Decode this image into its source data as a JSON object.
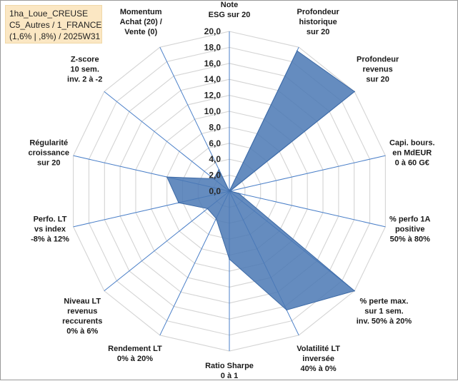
{
  "title_box": {
    "line1": "1ha_Loue_CREUSE",
    "line2": "C5_Autres / 1_FRANCE",
    "line3": "(1,6% | ,8%) / 2025W31"
  },
  "chart_data": {
    "type": "radar",
    "rmin": 0,
    "rmax": 20,
    "tick_step": 2,
    "tick_labels": [
      "0,0",
      "2,0",
      "4,0",
      "6,0",
      "8,0",
      "10,0",
      "12,0",
      "14,0",
      "16,0",
      "18,0",
      "20,0"
    ],
    "axes": [
      {
        "label": [
          "Note",
          "ESG sur 20"
        ]
      },
      {
        "label": [
          "Profondeur",
          "historique",
          "sur 20"
        ]
      },
      {
        "label": [
          "Profondeur",
          "revenus",
          "sur 20"
        ]
      },
      {
        "label": [
          "Capi. bours.",
          "en MdEUR",
          "0 à 60 G€"
        ]
      },
      {
        "label": [
          "% perfo 1A",
          "positive",
          "50% à 80%"
        ]
      },
      {
        "label": [
          "% perte max.",
          "sur 1 sem.",
          "inv. 50% à 20%"
        ]
      },
      {
        "label": [
          "Volatilité LT",
          "inversée",
          "40% à 0%"
        ]
      },
      {
        "label": [
          "Ratio Sharpe",
          "0 à 1"
        ]
      },
      {
        "label": [
          "Rendement LT",
          "0% à 20%"
        ]
      },
      {
        "label": [
          "Niveau LT",
          "revenus",
          "reccurents",
          "0% à 6%"
        ]
      },
      {
        "label": [
          "Perfo. LT",
          "vs index",
          "-8% à 12%"
        ]
      },
      {
        "label": [
          "Régularité",
          "croissance",
          "sur 20"
        ]
      },
      {
        "label": [
          "Z-score",
          "10 sem.",
          "inv. 2 à -2"
        ]
      },
      {
        "label": [
          "Momentum",
          "Achat (20) /",
          "Vente (0)"
        ]
      }
    ],
    "series": [
      {
        "values": [
          0,
          19.5,
          20,
          0.1,
          1.2,
          20,
          16.5,
          8.5,
          3.8,
          3.5,
          6.5,
          8,
          2.5,
          3
        ],
        "color": "#4a78b4"
      }
    ],
    "grid": true,
    "legend": "none"
  }
}
